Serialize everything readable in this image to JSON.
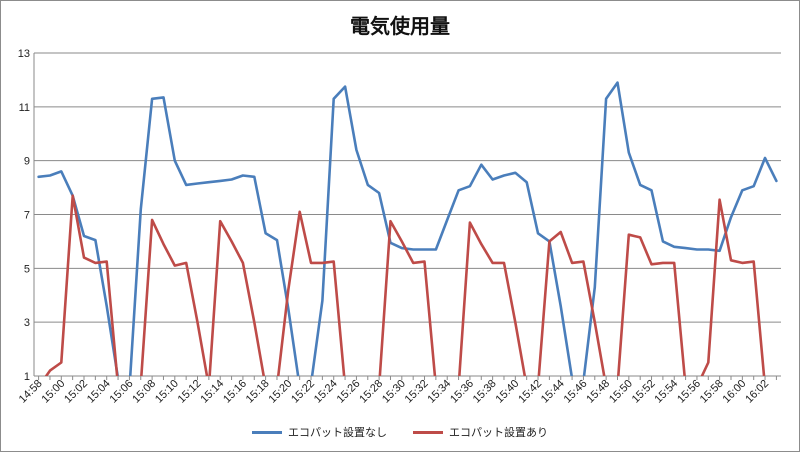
{
  "chart_data": {
    "type": "line",
    "title": "電気使用量",
    "xlabel": "",
    "ylabel": "",
    "ylim": [
      1,
      13
    ],
    "yticks": [
      1,
      3,
      5,
      7,
      9,
      11,
      13
    ],
    "grid": true,
    "legend_position": "bottom",
    "x": [
      "14:58",
      "14:59",
      "15:00",
      "15:01",
      "15:02",
      "15:03",
      "15:04",
      "15:05",
      "15:06",
      "15:07",
      "15:08",
      "15:09",
      "15:10",
      "15:11",
      "15:12",
      "15:13",
      "15:14",
      "15:15",
      "15:16",
      "15:17",
      "15:18",
      "15:19",
      "15:20",
      "15:21",
      "15:22",
      "15:23",
      "15:24",
      "15:25",
      "15:26",
      "15:27",
      "15:28",
      "15:29",
      "15:30",
      "15:31",
      "15:32",
      "15:33",
      "15:34",
      "15:35",
      "15:36",
      "15:37",
      "15:38",
      "15:39",
      "15:40",
      "15:41",
      "15:42",
      "15:43",
      "15:44",
      "15:45",
      "15:46",
      "15:47",
      "15:48",
      "15:49",
      "15:50",
      "15:51",
      "15:52",
      "15:53",
      "15:54",
      "15:55",
      "15:56",
      "15:57",
      "15:58",
      "15:59",
      "16:00",
      "16:01",
      "16:02",
      "16:03"
    ],
    "xtick_labels": [
      "14:58",
      "15:00",
      "15:02",
      "15:04",
      "15:06",
      "15:08",
      "15:10",
      "15:12",
      "15:14",
      "15:16",
      "15:18",
      "15:20",
      "15:22",
      "15:24",
      "15:26",
      "15:28",
      "15:30",
      "15:32",
      "15:34",
      "15:36",
      "15:38",
      "15:40",
      "15:42",
      "15:44",
      "15:46",
      "15:48",
      "15:50",
      "15:52",
      "15:54",
      "15:56",
      "15:58",
      "16:00",
      "16:02"
    ],
    "series": [
      {
        "name": "エコパット設置なし",
        "color": "#4a7ebb",
        "values": [
          8.4,
          8.45,
          8.6,
          7.7,
          6.2,
          6.05,
          3.6,
          0.9,
          0.5,
          7.2,
          11.3,
          11.35,
          9.0,
          8.1,
          8.15,
          8.2,
          8.25,
          8.3,
          8.45,
          8.4,
          6.3,
          6.05,
          3.5,
          0.6,
          0.7,
          3.8,
          11.3,
          11.75,
          9.4,
          8.1,
          7.8,
          5.95,
          5.75,
          5.7,
          5.7,
          5.7,
          6.8,
          7.9,
          8.05,
          8.85,
          8.3,
          8.45,
          8.55,
          8.2,
          6.3,
          6.0,
          3.6,
          0.9,
          0.8,
          4.3,
          11.3,
          11.9,
          9.3,
          8.1,
          7.9,
          6.0,
          5.8,
          5.75,
          5.7,
          5.7,
          5.65,
          6.9,
          7.9,
          8.05,
          9.1,
          8.25
        ]
      },
      {
        "name": "エコパット設置あり",
        "color": "#be4b48",
        "values": [
          0.6,
          1.2,
          1.5,
          7.7,
          5.4,
          5.2,
          5.25,
          0.6,
          0.6,
          0.7,
          6.8,
          5.9,
          5.1,
          5.2,
          3.0,
          0.6,
          6.75,
          6.0,
          5.2,
          3.0,
          0.6,
          0.6,
          4.2,
          7.1,
          5.2,
          5.2,
          5.25,
          0.6,
          0.6,
          0.6,
          0.6,
          6.75,
          6.0,
          5.2,
          5.25,
          0.6,
          0.6,
          0.6,
          6.7,
          5.9,
          5.2,
          5.2,
          3.0,
          0.6,
          0.6,
          6.0,
          6.35,
          5.2,
          5.25,
          3.0,
          0.6,
          0.6,
          6.25,
          6.15,
          5.15,
          5.2,
          5.2,
          0.6,
          0.6,
          1.5,
          7.55,
          5.3,
          5.2,
          5.25,
          0.6,
          0.6
        ]
      }
    ]
  }
}
